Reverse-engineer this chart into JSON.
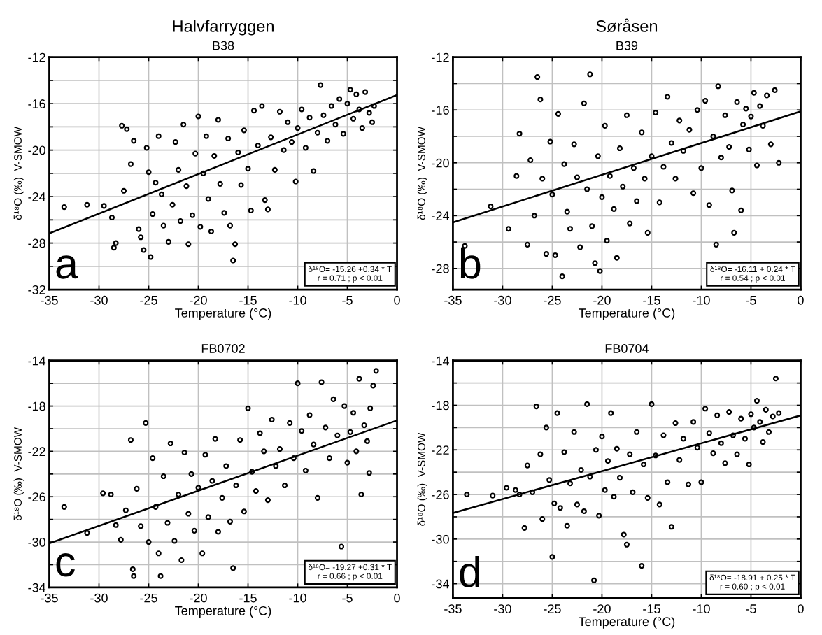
{
  "chart_data": [
    {
      "type": "scatter",
      "title": "Halvfarryggen",
      "subtitle": "B38",
      "xlabel": "Temperature (°C)",
      "ylabel": "δ¹⁸O (‰)  V-SMOW",
      "xlim": [
        -35,
        0
      ],
      "xticks": [
        -35,
        -30,
        -25,
        -20,
        -15,
        -10,
        -5,
        0
      ],
      "ylim": [
        -32,
        -12
      ],
      "yticks": [
        -32,
        {
          "value": -30,
          "label": null
        },
        -28,
        {
          "value": -26,
          "label": null
        },
        -24,
        {
          "value": -22,
          "label": null
        },
        -20,
        {
          "value": -18,
          "label": null
        },
        -16,
        {
          "value": -14,
          "label": null
        },
        -12
      ],
      "grid": true,
      "annotations": [
        "a",
        "δ¹⁸O= -15.26 +0.34 * T",
        "r = 0.71 ; p < 0.01"
      ],
      "series": [
        {
          "marker": "circle",
          "color": "#000000",
          "x": [
            -33.5,
            -31.2,
            -29.5,
            -28.7,
            -28.3,
            -28.5,
            -27.5,
            -27.7,
            -27.2,
            -26.8,
            -26.5,
            -26.0,
            -25.8,
            -25.5,
            -25.2,
            -25.0,
            -24.8,
            -24.6,
            -24.3,
            -24.0,
            -23.7,
            -23.5,
            -23.0,
            -22.6,
            -22.3,
            -22.0,
            -21.8,
            -21.5,
            -21.2,
            -21.0,
            -20.6,
            -20.3,
            -20.0,
            -19.8,
            -19.5,
            -19.2,
            -19.0,
            -18.7,
            -18.4,
            -18.0,
            -17.8,
            -17.4,
            -17.0,
            -16.8,
            -16.5,
            -16.3,
            -16.0,
            -15.7,
            -15.4,
            -15.0,
            -14.7,
            -14.4,
            -14.0,
            -13.6,
            -13.3,
            -13.0,
            -12.7,
            -12.3,
            -11.8,
            -11.4,
            -11.0,
            -10.6,
            -10.2,
            -10.0,
            -9.6,
            -9.2,
            -8.8,
            -8.4,
            -8.0,
            -7.7,
            -7.4,
            -7.0,
            -6.6,
            -6.2,
            -5.8,
            -5.4,
            -5.0,
            -4.7,
            -4.4,
            -4.1,
            -3.8,
            -3.5,
            -3.2,
            -2.8,
            -2.5,
            -2.3
          ],
          "values": [
            -24.9,
            -24.7,
            -24.8,
            -25.8,
            -28.0,
            -28.4,
            -23.5,
            -17.9,
            -18.2,
            -21.2,
            -19.2,
            -26.8,
            -27.5,
            -28.6,
            -19.8,
            -21.9,
            -29.2,
            -25.5,
            -22.8,
            -18.8,
            -23.8,
            -26.5,
            -27.9,
            -24.7,
            -19.3,
            -21.7,
            -26.1,
            -17.8,
            -23.1,
            -28.1,
            -25.6,
            -20.3,
            -17.1,
            -26.6,
            -22.0,
            -18.8,
            -24.2,
            -27.0,
            -20.5,
            -17.4,
            -22.9,
            -25.4,
            -19.0,
            -26.5,
            -29.5,
            -28.1,
            -20.2,
            -23.0,
            -18.3,
            -21.6,
            -25.2,
            -16.6,
            -19.6,
            -16.2,
            -24.3,
            -25.1,
            -18.9,
            -21.7,
            -16.7,
            -20.0,
            -17.6,
            -19.3,
            -22.7,
            -18.1,
            -16.5,
            -19.8,
            -17.2,
            -21.8,
            -18.5,
            -14.4,
            -17.0,
            -19.2,
            -16.2,
            -17.8,
            -15.6,
            -18.6,
            -16.0,
            -14.8,
            -17.3,
            -15.2,
            -16.5,
            -18.1,
            -15.0,
            -16.8,
            -17.6,
            -16.2
          ]
        },
        {
          "type": "line",
          "color": "#000000",
          "x": [
            -35,
            0
          ],
          "values": [
            -27.16,
            -15.26
          ]
        }
      ]
    },
    {
      "type": "scatter",
      "title": "Søråsen",
      "subtitle": "B39",
      "xlabel": "Temperature (°C)",
      "ylabel": "δ¹⁸O (‰)  V-SMOW",
      "xlim": [
        -35,
        0
      ],
      "xticks": [
        -35,
        -30,
        -25,
        -20,
        -15,
        -10,
        -5,
        0
      ],
      "ylim": [
        -29.6,
        -12
      ],
      "yticks": [
        -28,
        {
          "value": -26,
          "label": null
        },
        -24,
        {
          "value": -22,
          "label": null
        },
        -20,
        {
          "value": -18,
          "label": null
        },
        -16,
        {
          "value": -14,
          "label": null
        },
        -12
      ],
      "grid": true,
      "annotations": [
        "b",
        "δ¹⁸O= -16.11 + 0.24 * T",
        "r = 0.54 ; p < 0.01"
      ],
      "series": [
        {
          "marker": "circle",
          "color": "#000000",
          "x": [
            -33.8,
            -31.2,
            -29.4,
            -28.6,
            -28.3,
            -27.5,
            -27.2,
            -26.8,
            -26.5,
            -26.2,
            -26.0,
            -25.6,
            -25.2,
            -25.0,
            -24.7,
            -24.4,
            -24.0,
            -23.8,
            -23.5,
            -23.2,
            -22.8,
            -22.5,
            -22.2,
            -21.8,
            -21.5,
            -21.2,
            -21.0,
            -20.7,
            -20.4,
            -20.2,
            -20.0,
            -19.7,
            -19.5,
            -19.2,
            -18.8,
            -18.5,
            -18.2,
            -17.9,
            -17.5,
            -17.2,
            -16.8,
            -16.5,
            -16.0,
            -15.7,
            -15.4,
            -15.0,
            -14.6,
            -14.2,
            -13.8,
            -13.4,
            -13.0,
            -12.6,
            -12.2,
            -11.8,
            -11.2,
            -10.8,
            -10.4,
            -10.0,
            -9.6,
            -9.2,
            -8.8,
            -8.5,
            -8.3,
            -8.0,
            -7.6,
            -7.2,
            -6.9,
            -6.7,
            -6.4,
            -6.0,
            -5.8,
            -5.5,
            -5.2,
            -5.0,
            -4.7,
            -4.4,
            -4.1,
            -3.8,
            -3.4,
            -3.0,
            -2.6,
            -2.2
          ],
          "values": [
            -26.3,
            -23.3,
            -25.0,
            -21.0,
            -17.8,
            -26.2,
            -19.8,
            -24.0,
            -13.5,
            -15.2,
            -21.2,
            -26.9,
            -18.4,
            -22.4,
            -27.0,
            -16.3,
            -28.6,
            -20.1,
            -23.7,
            -25.0,
            -18.6,
            -21.1,
            -26.4,
            -15.5,
            -22.0,
            -13.3,
            -24.8,
            -27.6,
            -19.5,
            -28.2,
            -22.6,
            -17.2,
            -25.9,
            -21.0,
            -23.5,
            -27.2,
            -18.9,
            -21.8,
            -16.4,
            -24.6,
            -20.4,
            -22.9,
            -17.7,
            -21.2,
            -25.3,
            -19.5,
            -16.2,
            -23.0,
            -20.3,
            -15.0,
            -18.5,
            -21.2,
            -16.8,
            -19.1,
            -17.5,
            -22.3,
            -16.0,
            -20.4,
            -15.3,
            -23.2,
            -18.0,
            -26.2,
            -14.2,
            -19.6,
            -16.4,
            -18.8,
            -22.1,
            -25.3,
            -15.4,
            -23.6,
            -17.1,
            -15.9,
            -19.0,
            -16.5,
            -14.7,
            -20.2,
            -15.7,
            -17.2,
            -14.9,
            -18.6,
            -14.5,
            -20.0
          ]
        },
        {
          "type": "line",
          "color": "#000000",
          "x": [
            -35,
            0
          ],
          "values": [
            -24.51,
            -16.11
          ]
        }
      ]
    },
    {
      "type": "scatter",
      "title": "FB0702",
      "xlabel": "Temperature (°C)",
      "ylabel": "δ¹⁸O (‰)  V-SMOW",
      "xlim": [
        -35,
        0
      ],
      "xticks": [
        -35,
        -30,
        -25,
        -20,
        -15,
        -10,
        -5,
        0
      ],
      "ylim": [
        -34,
        -14
      ],
      "yticks": [
        -34,
        {
          "value": -32,
          "label": null
        },
        -30,
        {
          "value": -28,
          "label": null
        },
        -26,
        {
          "value": -24,
          "label": null
        },
        -22,
        {
          "value": -20,
          "label": null
        },
        -18,
        {
          "value": -16,
          "label": null
        },
        -14
      ],
      "grid": true,
      "annotations": [
        "c",
        "δ¹⁸O= -19.27 +0.31 * T",
        "r = 0.66 ; p < 0.01"
      ],
      "series": [
        {
          "marker": "circle",
          "color": "#000000",
          "x": [
            -33.5,
            -31.2,
            -29.6,
            -28.8,
            -28.3,
            -27.8,
            -27.3,
            -26.8,
            -26.6,
            -26.5,
            -26.2,
            -25.8,
            -25.3,
            -25.0,
            -24.6,
            -24.3,
            -24.0,
            -23.8,
            -23.5,
            -23.1,
            -22.8,
            -22.4,
            -22.0,
            -21.7,
            -21.4,
            -21.0,
            -20.7,
            -20.4,
            -20.0,
            -19.6,
            -19.3,
            -19.0,
            -18.6,
            -18.3,
            -18.0,
            -17.6,
            -17.2,
            -16.8,
            -16.5,
            -16.2,
            -15.8,
            -15.4,
            -15.0,
            -14.6,
            -14.2,
            -13.8,
            -13.4,
            -13.0,
            -12.6,
            -12.2,
            -11.8,
            -11.3,
            -10.8,
            -10.4,
            -10.0,
            -9.6,
            -9.2,
            -8.8,
            -8.4,
            -8.0,
            -7.6,
            -7.2,
            -6.8,
            -6.4,
            -6.0,
            -5.6,
            -5.3,
            -5.0,
            -4.7,
            -4.4,
            -4.1,
            -3.8,
            -3.6,
            -3.3,
            -3.0,
            -2.7,
            -2.4,
            -2.1,
            -2.8
          ],
          "values": [
            -26.9,
            -29.2,
            -25.7,
            -25.8,
            -28.5,
            -29.8,
            -27.2,
            -21.0,
            -32.4,
            -33.0,
            -25.3,
            -28.6,
            -19.5,
            -30.0,
            -22.6,
            -26.9,
            -31.0,
            -33.0,
            -24.2,
            -28.3,
            -21.3,
            -29.9,
            -25.8,
            -31.6,
            -22.1,
            -27.5,
            -24.0,
            -29.0,
            -25.2,
            -31.0,
            -22.3,
            -27.8,
            -24.6,
            -20.9,
            -29.1,
            -26.1,
            -23.3,
            -28.2,
            -32.3,
            -25.0,
            -21.0,
            -27.3,
            -18.2,
            -23.8,
            -25.5,
            -20.4,
            -22.0,
            -26.3,
            -19.2,
            -23.3,
            -21.8,
            -25.0,
            -19.5,
            -22.6,
            -16.0,
            -20.2,
            -23.7,
            -18.8,
            -21.4,
            -26.1,
            -15.9,
            -19.9,
            -22.6,
            -17.4,
            -20.6,
            -30.4,
            -18.0,
            -23.0,
            -20.3,
            -18.6,
            -22.0,
            -15.6,
            -25.8,
            -19.7,
            -21.1,
            -18.2,
            -16.2,
            -14.9,
            -23.9
          ]
        },
        {
          "type": "line",
          "color": "#000000",
          "x": [
            -35,
            0
          ],
          "values": [
            -30.12,
            -19.27
          ]
        }
      ]
    },
    {
      "type": "scatter",
      "title": "FB0704",
      "xlabel": "Temperature (°C)",
      "ylabel": "δ¹⁸O (‰)  V-SMOW",
      "xlim": [
        -35,
        0
      ],
      "xticks": [
        -35,
        -30,
        -25,
        -20,
        -15,
        -10,
        -5,
        0
      ],
      "ylim": [
        -35.3,
        -14
      ],
      "yticks": [
        -34,
        {
          "value": -32,
          "label": null
        },
        -30,
        {
          "value": -28,
          "label": null
        },
        -26,
        {
          "value": -24,
          "label": null
        },
        -22,
        {
          "value": -20,
          "label": null
        },
        -18,
        {
          "value": -16,
          "label": null
        },
        -14
      ],
      "grid": true,
      "annotations": [
        "d",
        "δ¹⁸O= -18.91 + 0.25 * T",
        "r = 0.60 ; p < 0.01"
      ],
      "series": [
        {
          "marker": "circle",
          "color": "#000000",
          "x": [
            -33.6,
            -31.0,
            -29.6,
            -28.7,
            -28.3,
            -27.8,
            -27.5,
            -27.0,
            -26.6,
            -26.2,
            -26.0,
            -25.6,
            -25.3,
            -25.0,
            -24.8,
            -24.5,
            -24.2,
            -23.8,
            -23.5,
            -23.2,
            -22.8,
            -22.5,
            -22.1,
            -21.8,
            -21.5,
            -21.2,
            -20.8,
            -20.6,
            -20.3,
            -20.0,
            -19.7,
            -19.4,
            -19.1,
            -18.8,
            -18.5,
            -18.2,
            -17.8,
            -17.5,
            -17.2,
            -16.9,
            -16.5,
            -16.0,
            -15.8,
            -15.4,
            -15.0,
            -14.6,
            -14.2,
            -13.8,
            -13.4,
            -13.0,
            -12.6,
            -12.2,
            -11.8,
            -11.3,
            -10.8,
            -10.4,
            -10.0,
            -9.6,
            -9.2,
            -8.8,
            -8.4,
            -8.0,
            -7.6,
            -7.2,
            -6.8,
            -6.4,
            -6.0,
            -5.6,
            -5.2,
            -5.0,
            -4.7,
            -4.4,
            -4.1,
            -3.8,
            -3.5,
            -3.2,
            -2.8,
            -2.5,
            -2.2
          ],
          "values": [
            -26.0,
            -26.1,
            -25.4,
            -25.6,
            -26.0,
            -29.0,
            -23.4,
            -25.8,
            -18.1,
            -22.4,
            -28.2,
            -20.0,
            -24.7,
            -31.6,
            -26.8,
            -18.7,
            -27.2,
            -22.2,
            -28.8,
            -25.0,
            -20.4,
            -26.9,
            -23.8,
            -27.5,
            -17.9,
            -24.4,
            -33.7,
            -22.0,
            -27.9,
            -20.8,
            -25.6,
            -23.0,
            -18.7,
            -26.2,
            -21.9,
            -24.5,
            -29.6,
            -30.5,
            -22.4,
            -25.8,
            -20.4,
            -32.4,
            -23.3,
            -26.3,
            -17.9,
            -22.5,
            -26.9,
            -20.7,
            -24.9,
            -28.9,
            -19.6,
            -22.9,
            -21.0,
            -25.1,
            -19.5,
            -21.8,
            -24.9,
            -18.3,
            -20.5,
            -22.3,
            -18.9,
            -21.4,
            -23.2,
            -18.6,
            -20.7,
            -22.4,
            -19.2,
            -21.0,
            -23.3,
            -18.8,
            -20.0,
            -17.6,
            -19.5,
            -21.3,
            -18.4,
            -20.4,
            -19.0,
            -15.6,
            -18.7
          ]
        },
        {
          "type": "line",
          "color": "#000000",
          "x": [
            -35,
            0
          ],
          "values": [
            -27.66,
            -18.91
          ]
        }
      ]
    }
  ]
}
